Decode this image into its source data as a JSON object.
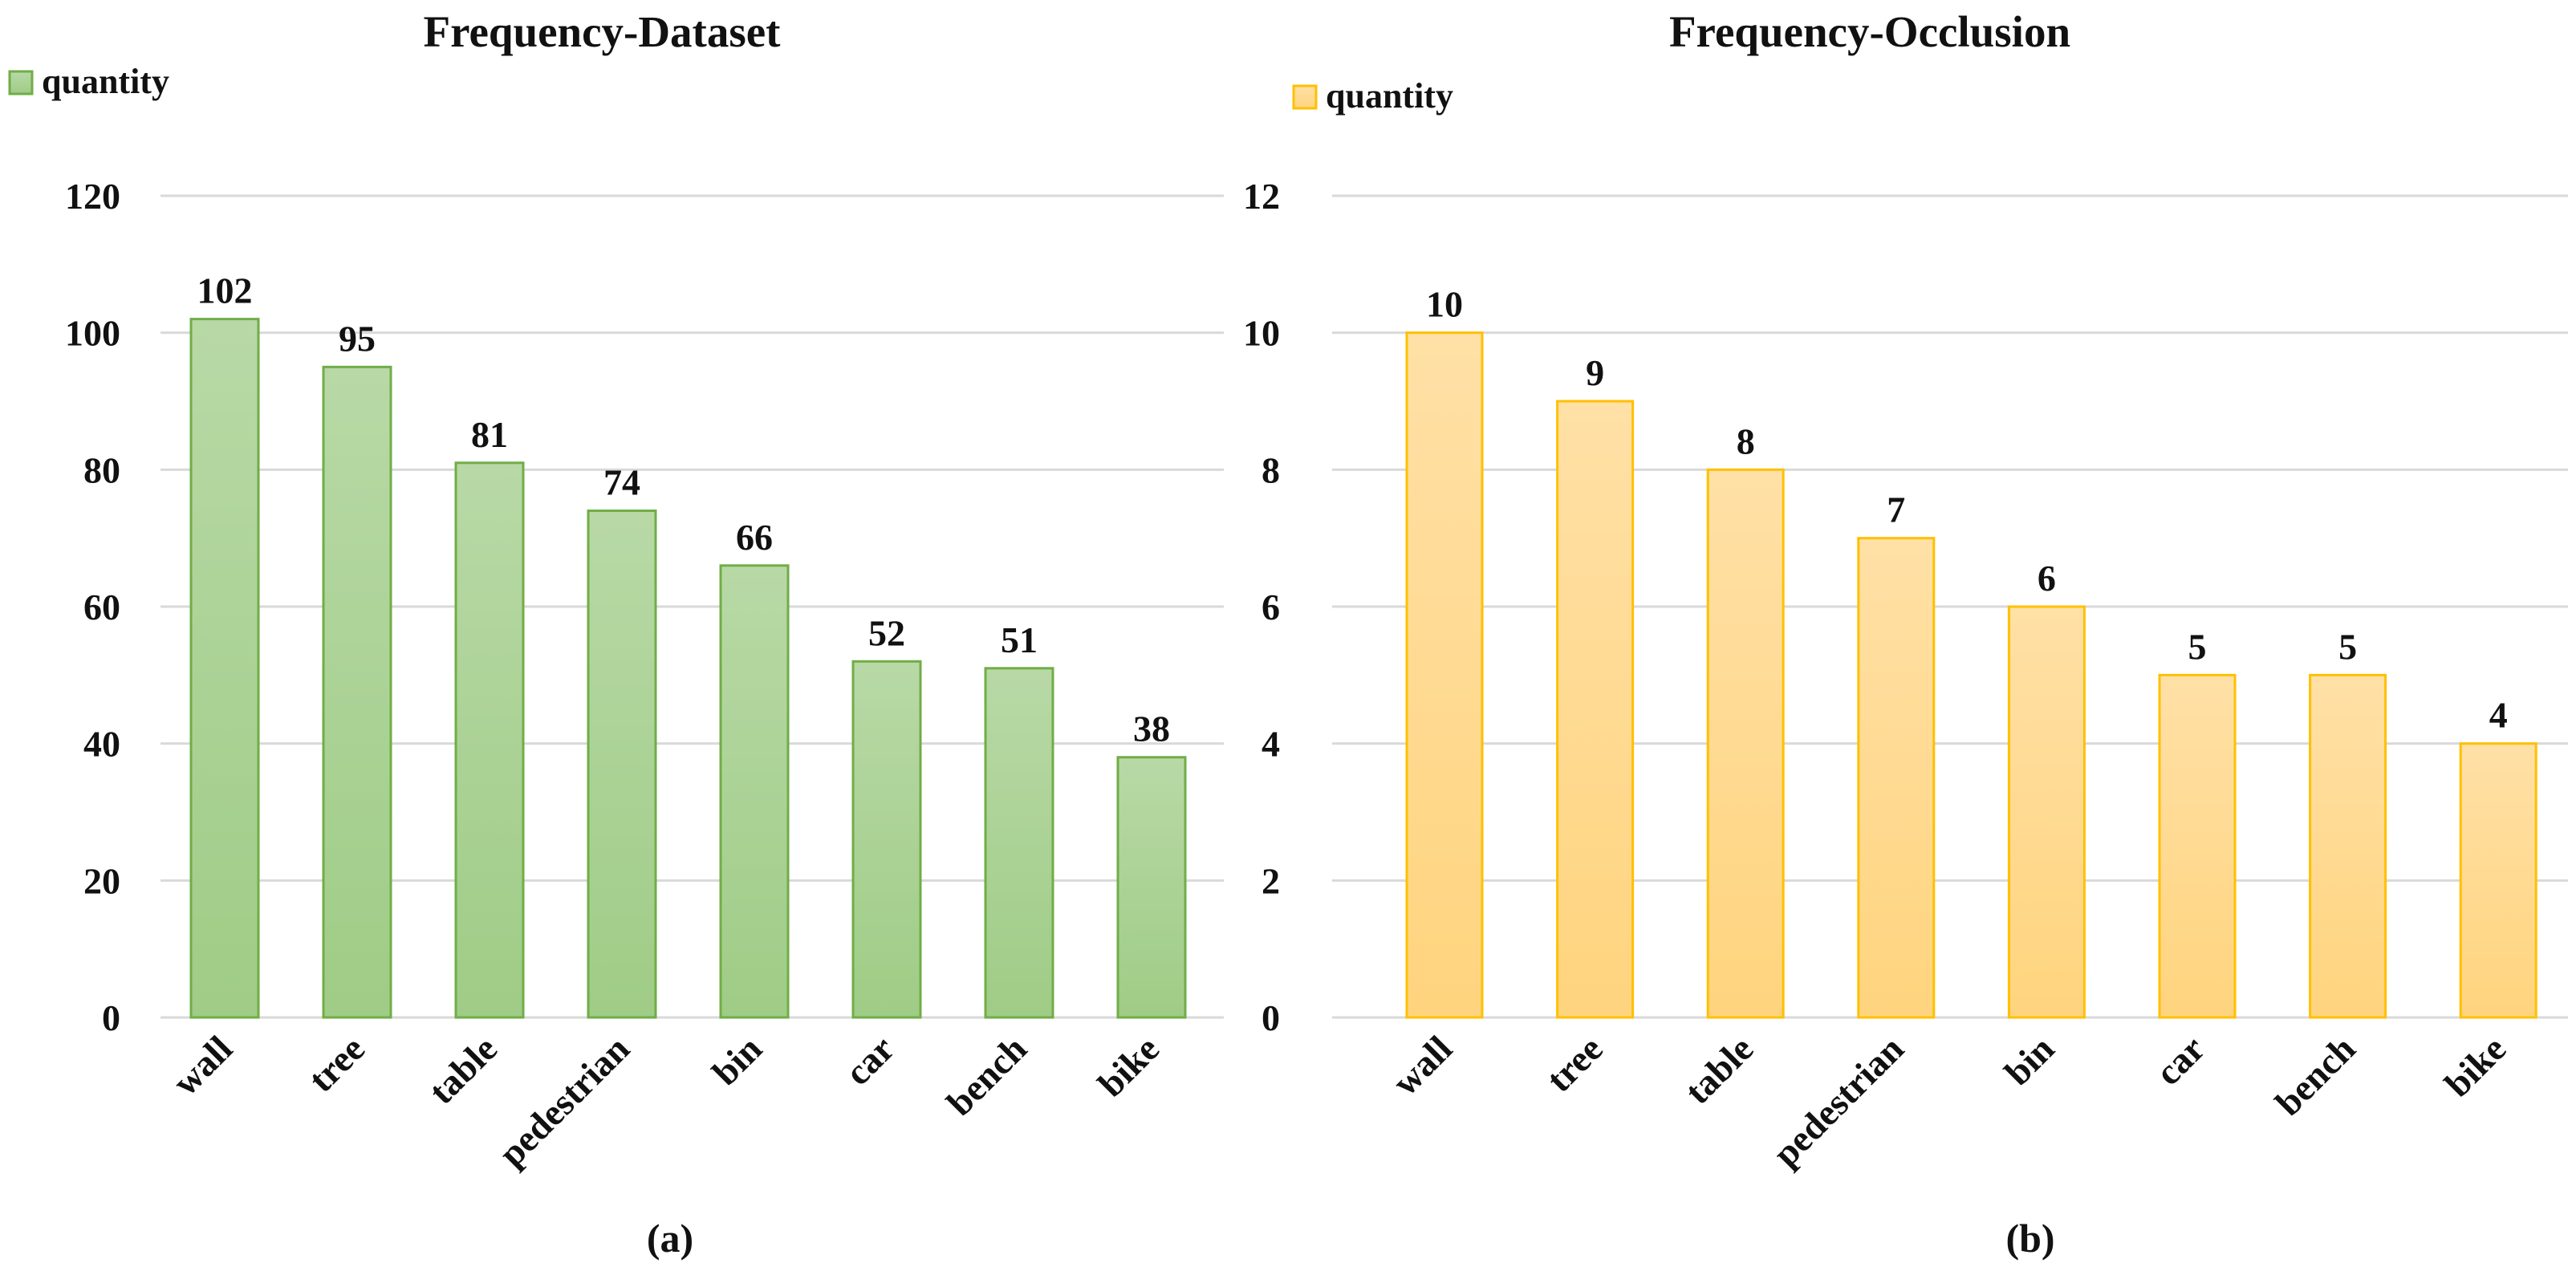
{
  "chart_data": [
    {
      "type": "bar",
      "title": "Frequency-Dataset",
      "caption": "(a)",
      "categories": [
        "wall",
        "tree",
        "table",
        "pedestrian",
        "bin",
        "car",
        "bench",
        "bike"
      ],
      "series": [
        {
          "name": "quantity",
          "values": [
            102,
            95,
            81,
            74,
            66,
            52,
            51,
            38
          ]
        }
      ],
      "data_labels": [
        "102",
        "95",
        "81",
        "74",
        "66",
        "52",
        "51",
        "38"
      ],
      "ylim": [
        0,
        120
      ],
      "yticks": [
        "0",
        "20",
        "40",
        "60",
        "80",
        "100",
        "120"
      ],
      "grid": true,
      "legend": "top-left",
      "colors": {
        "fill_top": "#b8d9a6",
        "fill_bottom": "#9fcc86",
        "stroke": "#70ad47"
      }
    },
    {
      "type": "bar",
      "title": "Frequency-Occlusion",
      "caption": "(b)",
      "categories": [
        "wall",
        "tree",
        "table",
        "pedestrian",
        "bin",
        "car",
        "bench",
        "bike"
      ],
      "series": [
        {
          "name": "quantity",
          "values": [
            10,
            9,
            8,
            7,
            6,
            5,
            5,
            4
          ]
        }
      ],
      "data_labels": [
        "10",
        "9",
        "8",
        "7",
        "6",
        "5",
        "5",
        "4"
      ],
      "ylim": [
        0,
        12
      ],
      "yticks": [
        "0",
        "2",
        "4",
        "6",
        "8",
        "10",
        "12"
      ],
      "grid": true,
      "legend": "top-left",
      "colors": {
        "fill_top": "#ffe0a6",
        "fill_bottom": "#ffd47e",
        "stroke": "#ffc000"
      }
    }
  ]
}
